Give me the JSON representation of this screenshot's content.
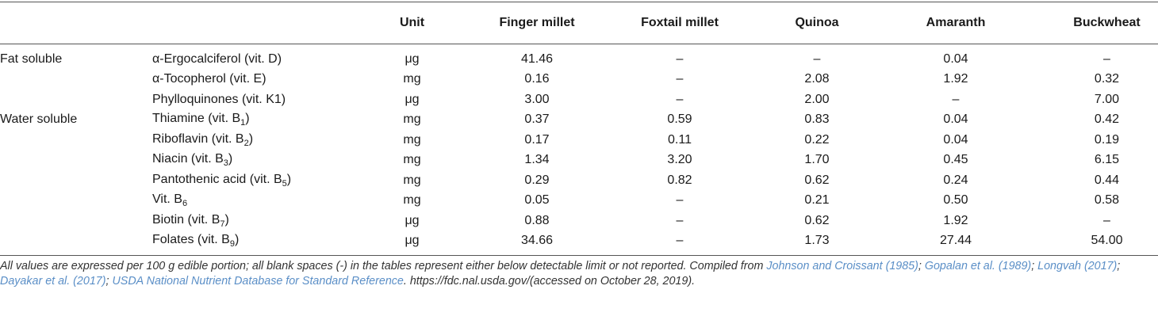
{
  "table": {
    "header": [
      "",
      "",
      "Unit",
      "Finger millet",
      "Foxtail millet",
      "Quinoa",
      "Amaranth",
      "Buckwheat"
    ],
    "rows": [
      {
        "group": "Fat soluble",
        "vitamin": {
          "text": "α-Ergocalciferol (vit. D)"
        },
        "unit": "μg",
        "values": [
          "41.46",
          "–",
          "–",
          "0.04",
          "–"
        ]
      },
      {
        "group": "",
        "vitamin": {
          "text": "α-Tocopherol (vit. E)"
        },
        "unit": "mg",
        "values": [
          "0.16",
          "–",
          "2.08",
          "1.92",
          "0.32"
        ]
      },
      {
        "group": "",
        "vitamin": {
          "text": "Phylloquinones (vit. K1)"
        },
        "unit": "μg",
        "values": [
          "3.00",
          "–",
          "2.00",
          "–",
          "7.00"
        ]
      },
      {
        "group": "Water soluble",
        "vitamin": {
          "text": "Thiamine (vit. B",
          "sub": "1",
          "after": ")"
        },
        "unit": "mg",
        "values": [
          "0.37",
          "0.59",
          "0.83",
          "0.04",
          "0.42"
        ]
      },
      {
        "group": "",
        "vitamin": {
          "text": "Riboflavin (vit. B",
          "sub": "2",
          "after": ")"
        },
        "unit": "mg",
        "values": [
          "0.17",
          "0.11",
          "0.22",
          "0.04",
          "0.19"
        ]
      },
      {
        "group": "",
        "vitamin": {
          "text": "Niacin (vit. B",
          "sub": "3",
          "after": ")"
        },
        "unit": "mg",
        "values": [
          "1.34",
          "3.20",
          "1.70",
          "0.45",
          "6.15"
        ]
      },
      {
        "group": "",
        "vitamin": {
          "text": "Pantothenic acid (vit. B",
          "sub": "5",
          "after": ")"
        },
        "unit": "mg",
        "values": [
          "0.29",
          "0.82",
          "0.62",
          "0.24",
          "0.44"
        ]
      },
      {
        "group": "",
        "vitamin": {
          "text": "Vit. B",
          "sub": "6"
        },
        "unit": "mg",
        "values": [
          "0.05",
          "–",
          "0.21",
          "0.50",
          "0.58"
        ]
      },
      {
        "group": "",
        "vitamin": {
          "text": "Biotin (vit. B",
          "sub": "7",
          "after": ")"
        },
        "unit": "μg",
        "values": [
          "0.88",
          "–",
          "0.62",
          "1.92",
          "–"
        ]
      },
      {
        "group": "",
        "vitamin": {
          "text": "Folates (vit. B",
          "sub": "9",
          "after": ")"
        },
        "unit": "μg",
        "values": [
          "34.66",
          "–",
          "1.73",
          "27.44",
          "54.00"
        ]
      }
    ]
  },
  "footnote": [
    {
      "text": "All values are expressed per 100 g edible portion; all blank spaces (-) in the tables represent either below detectable limit or not reported. Compiled from "
    },
    {
      "text": "Johnson and Croissant (1985)",
      "cite": true
    },
    {
      "text": "; "
    },
    {
      "text": "Gopalan et al. (1989)",
      "cite": true
    },
    {
      "text": "; "
    },
    {
      "text": "Longvah (2017)",
      "cite": true
    },
    {
      "text": "; "
    },
    {
      "text": "Dayakar et al. (2017)",
      "cite": true
    },
    {
      "text": "; "
    },
    {
      "text": "USDA National Nutrient Database for Standard Reference",
      "cite": true
    },
    {
      "text": ". https://fdc.nal.usda.gov/(accessed on October 28, 2019)."
    }
  ]
}
